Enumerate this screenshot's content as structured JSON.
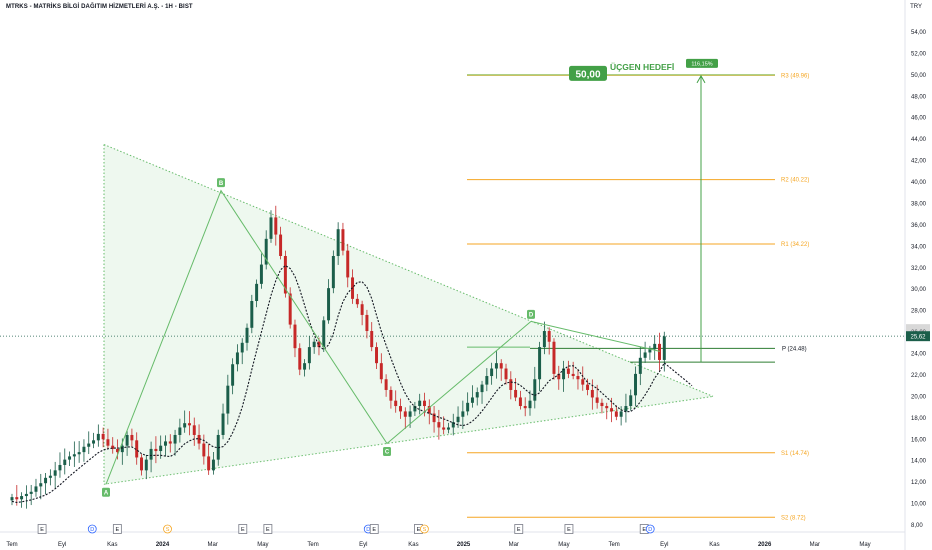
{
  "header": {
    "title": "MTRKS - MATRİKS BİLGİ DAĞITIM HİZMETLERİ A.Ş. - 1H - BIST",
    "currency": "TRY"
  },
  "colors": {
    "up": "#1b5e4a",
    "down": "#c62828",
    "triangle_fill": "#e8f5e9",
    "triangle_line": "#66bb6a",
    "pivot": "#f5a623",
    "target": "#43a047"
  },
  "target": {
    "price_label": "50,00",
    "name": "ÜÇGEN HEDEFİ",
    "percent": "116,15%",
    "value": 50.0
  },
  "pivots": [
    {
      "label": "R3 (49.96)",
      "value": 49.96
    },
    {
      "label": "R2 (40.22)",
      "value": 40.22
    },
    {
      "label": "R1 (34.22)",
      "value": 34.22
    },
    {
      "label": "P (24.48)",
      "value": 24.48
    },
    {
      "label": "S1 (14.74)",
      "value": 14.74
    },
    {
      "label": "S2 (8.72)",
      "value": 8.72
    }
  ],
  "points": [
    {
      "label": "A",
      "date": "2023-11",
      "value": 11.8
    },
    {
      "label": "B",
      "date": "2024-02",
      "value": 39.2
    },
    {
      "label": "C",
      "date": "2024-09",
      "value": 15.6
    },
    {
      "label": "D",
      "date": "2025-03",
      "value": 27.0
    }
  ],
  "current_price": {
    "label": "25,62",
    "value": 25.62
  },
  "events": [
    {
      "label": "E",
      "date": "2023-08"
    },
    {
      "label": "D",
      "date": "2023-10"
    },
    {
      "label": "E",
      "date": "2023-11"
    },
    {
      "label": "S",
      "date": "2024-01"
    },
    {
      "label": "E",
      "date": "2024-04"
    },
    {
      "label": "E",
      "date": "2024-05"
    },
    {
      "label": "D",
      "date": "2024-09"
    },
    {
      "label": "E",
      "date": "2024-09"
    },
    {
      "label": "E",
      "date": "2024-11"
    },
    {
      "label": "S",
      "date": "2024-11"
    },
    {
      "label": "E",
      "date": "2025-03"
    },
    {
      "label": "E",
      "date": "2025-05"
    },
    {
      "label": "E",
      "date": "2025-08"
    },
    {
      "label": "D",
      "date": "2025-08"
    }
  ],
  "chart_data": {
    "type": "candlestick",
    "title": "MTRKS - MATRİKS BİLGİ DAĞITIM HİZMETLERİ A.Ş. - 1H - BIST",
    "y_ticks": [
      "8,00",
      "10,00",
      "12,00",
      "14,00",
      "16,00",
      "18,00",
      "20,00",
      "22,00",
      "24,00",
      "26,00",
      "28,00",
      "30,00",
      "32,00",
      "34,00",
      "36,00",
      "38,00",
      "40,00",
      "42,00",
      "44,00",
      "46,00",
      "48,00",
      "50,00",
      "52,00",
      "54,00"
    ],
    "ylim": [
      7.0,
      55.5
    ],
    "x_ticks": [
      {
        "label": "Tem",
        "date": "2023-07"
      },
      {
        "label": "Eyl",
        "date": "2023-09"
      },
      {
        "label": "Kas",
        "date": "2023-11"
      },
      {
        "label": "2024",
        "date": "2024-01"
      },
      {
        "label": "Mar",
        "date": "2024-03"
      },
      {
        "label": "May",
        "date": "2024-05"
      },
      {
        "label": "Tem",
        "date": "2024-07"
      },
      {
        "label": "Eyl",
        "date": "2024-09"
      },
      {
        "label": "Kas",
        "date": "2024-11"
      },
      {
        "label": "2025",
        "date": "2025-01"
      },
      {
        "label": "Mar",
        "date": "2025-03"
      },
      {
        "label": "May",
        "date": "2025-05"
      },
      {
        "label": "Tem",
        "date": "2025-07"
      },
      {
        "label": "Eyl",
        "date": "2025-09"
      },
      {
        "label": "Kas",
        "date": "2025-11"
      },
      {
        "label": "2026",
        "date": "2026-01"
      },
      {
        "label": "Mar",
        "date": "2026-03"
      },
      {
        "label": "May",
        "date": "2026-05"
      }
    ],
    "closes": [
      10.6,
      10.4,
      10.7,
      10.9,
      11.1,
      11.6,
      11.9,
      12.4,
      12.6,
      13.1,
      13.6,
      14.1,
      14.4,
      14.6,
      14.8,
      15.3,
      15.6,
      15.9,
      16.5,
      16.0,
      15.4,
      15.1,
      14.8,
      15.4,
      16.4,
      15.9,
      14.3,
      13.1,
      14.1,
      15.1,
      14.9,
      15.4,
      15.8,
      15.6,
      16.4,
      17.1,
      17.5,
      17.3,
      16.4,
      15.6,
      14.4,
      13.1,
      14.1,
      16.4,
      18.4,
      21.0,
      23.0,
      24.1,
      25.0,
      26.4,
      28.9,
      30.5,
      32.3,
      34.7,
      36.7,
      35.1,
      33.1,
      29.6,
      26.7,
      24.5,
      22.5,
      23.1,
      24.6,
      25.1,
      24.6,
      27.1,
      30.1,
      33.1,
      35.6,
      33.6,
      31.1,
      29.1,
      28.6,
      27.6,
      26.1,
      24.6,
      23.1,
      21.6,
      20.6,
      19.6,
      19.1,
      18.6,
      18.1,
      18.6,
      19.1,
      19.6,
      19.1,
      18.4,
      17.6,
      17.1,
      16.9,
      17.1,
      17.6,
      18.1,
      18.6,
      19.4,
      19.9,
      20.4,
      21.1,
      21.9,
      22.6,
      23.1,
      22.6,
      21.6,
      20.6,
      19.9,
      19.1,
      18.9,
      19.6,
      21.6,
      24.6,
      26.1,
      25.1,
      22.1,
      21.6,
      22.6,
      22.1,
      21.9,
      21.6,
      21.1,
      20.6,
      19.9,
      19.4,
      19.1,
      18.9,
      18.6,
      18.1,
      18.6,
      19.1,
      20.1,
      22.1,
      23.6,
      24.1,
      24.4,
      24.9,
      23.4,
      25.6
    ]
  }
}
